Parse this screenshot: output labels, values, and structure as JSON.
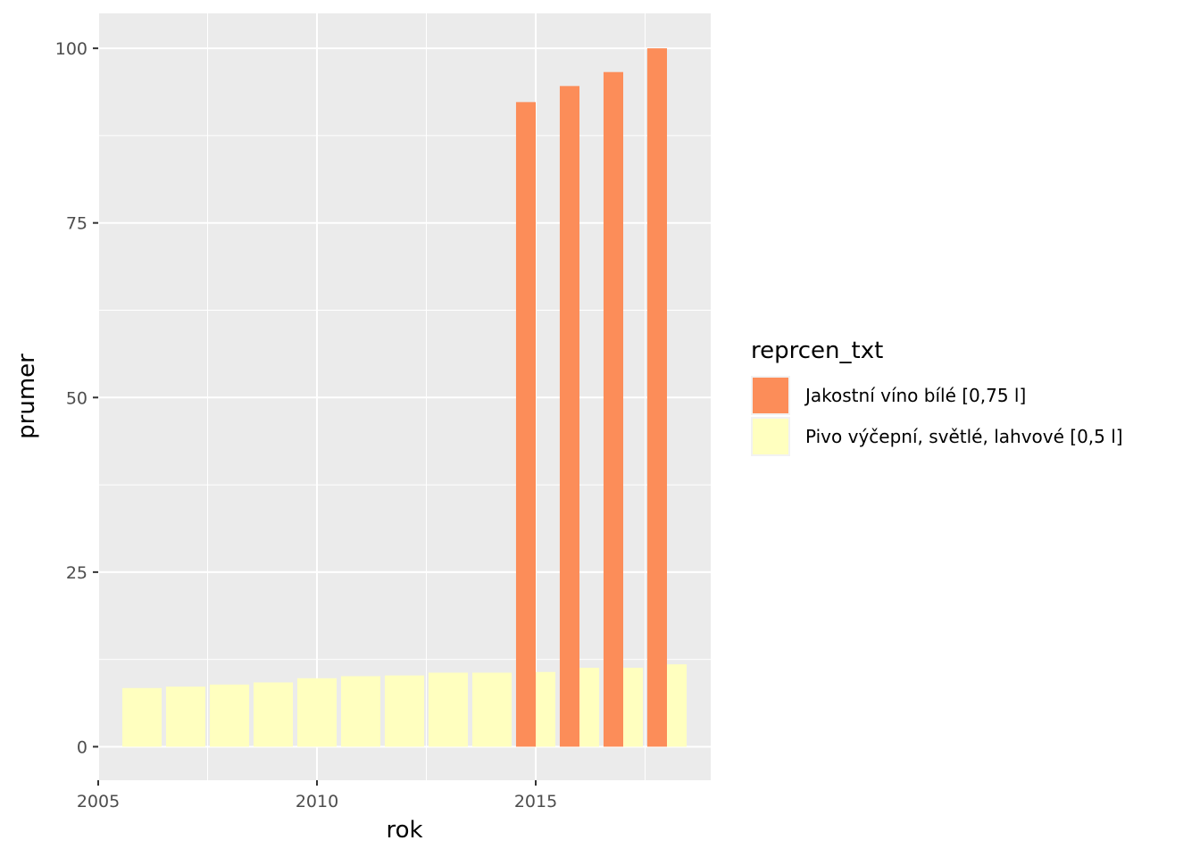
{
  "chart_data": {
    "type": "bar",
    "title": "",
    "xlabel": "rok",
    "ylabel": "prumer",
    "xlim": [
      2005,
      2019.0
    ],
    "ylim": [
      -4.8,
      105.0
    ],
    "x_ticks": [
      2005,
      2010,
      2015
    ],
    "y_ticks": [
      0,
      25,
      50,
      75,
      100
    ],
    "grid": true,
    "legend": {
      "title": "reprcen_txt",
      "position": "right"
    },
    "series": [
      {
        "name": "Jakostní víno bílé [0,75 l]",
        "color": "#fc8d59",
        "x": [
          2015,
          2016,
          2017,
          2018
        ],
        "values": [
          92.3,
          94.6,
          96.6,
          100.0
        ]
      },
      {
        "name": "Pivo výčepní, světlé, lahvové [0,5 l]",
        "color": "#ffffbf",
        "x": [
          2006,
          2007,
          2008,
          2009,
          2010,
          2011,
          2012,
          2013,
          2014,
          2015,
          2016,
          2017,
          2018
        ],
        "values": [
          8.4,
          8.6,
          8.9,
          9.2,
          9.8,
          10.1,
          10.2,
          10.6,
          10.6,
          10.7,
          11.3,
          11.3,
          11.8
        ]
      }
    ]
  }
}
